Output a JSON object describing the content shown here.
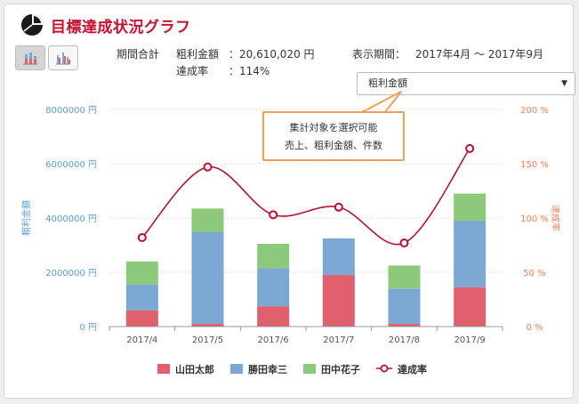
{
  "header": {
    "title": "目標達成状況グラフ",
    "icon": "pie-chart-icon"
  },
  "view_tabs": [
    {
      "name": "stacked-bar-view",
      "icon": "stacked-bar-chart-icon",
      "active": true
    },
    {
      "name": "grouped-bar-view",
      "icon": "grouped-bar-chart-icon",
      "active": false
    }
  ],
  "summary": {
    "period_total_label": "期間合計",
    "gross_profit_label": "粗利金額",
    "gross_profit_value": "：20,610,020 円",
    "achievement_label": "達成率",
    "achievement_value": "：114%",
    "display_period_label": "表示期間：",
    "display_period_value": "2017年4月 ～ 2017年9月"
  },
  "metric_select": {
    "selected": "粗利金額",
    "caret": "▼"
  },
  "callout": {
    "line1": "集計対象を選択可能",
    "line2": "売上、粗利金額、件数"
  },
  "colors": {
    "title": "#c8102e",
    "yamada": "#e0606e",
    "katsuta": "#7ba7d3",
    "tanaka": "#8cc97a",
    "rate_line": "#b8102e",
    "left_axis": "#5b9bd5",
    "right_axis": "#f08050",
    "callout_border": "#f0a050"
  },
  "chart_data": {
    "type": "bar",
    "categories": [
      "2017/4",
      "2017/5",
      "2017/6",
      "2017/7",
      "2017/8",
      "2017/9"
    ],
    "series": [
      {
        "name": "山田太郎",
        "values": [
          600000,
          100000,
          750000,
          1900000,
          100000,
          1450000
        ]
      },
      {
        "name": "勝田幸三",
        "values": [
          950000,
          3400000,
          1400000,
          1350000,
          1300000,
          2450000
        ]
      },
      {
        "name": "田中花子",
        "values": [
          850000,
          850000,
          900000,
          0,
          850000,
          1000000
        ]
      }
    ],
    "line_series": {
      "name": "達成率",
      "values": [
        82,
        147,
        103,
        110,
        77,
        164
      ],
      "axis": "right"
    },
    "ylabel": "粗利金額",
    "ylabel_right": "達成率",
    "ylim": [
      0,
      8000000
    ],
    "ylim_right": [
      0,
      200
    ],
    "yticks": [
      "0 円",
      "2000000 円",
      "4000000 円",
      "6000000 円",
      "8000000 円"
    ],
    "yticks_right": [
      "0 %",
      "50 %",
      "100 %",
      "150 %",
      "200 %"
    ],
    "grid": true,
    "legend": "bottom"
  }
}
